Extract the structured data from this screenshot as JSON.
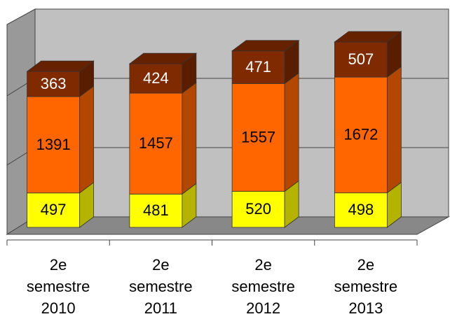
{
  "chart_data": {
    "type": "bar",
    "stacked": true,
    "three_d": true,
    "categories": [
      "2e semestre 2010",
      "2e semestre 2011",
      "2e semestre 2012",
      "2e semestre 2013"
    ],
    "series": [
      {
        "color": "#ffff00",
        "values": [
          497,
          481,
          520,
          498
        ]
      },
      {
        "color": "#ff6600",
        "values": [
          1391,
          1457,
          1557,
          1672
        ]
      },
      {
        "color": "#7f2a00",
        "values": [
          363,
          424,
          471,
          507
        ]
      }
    ],
    "ylim": [
      0,
      3000
    ],
    "yticks": [
      0,
      1000,
      2000,
      3000
    ],
    "grid": true
  }
}
